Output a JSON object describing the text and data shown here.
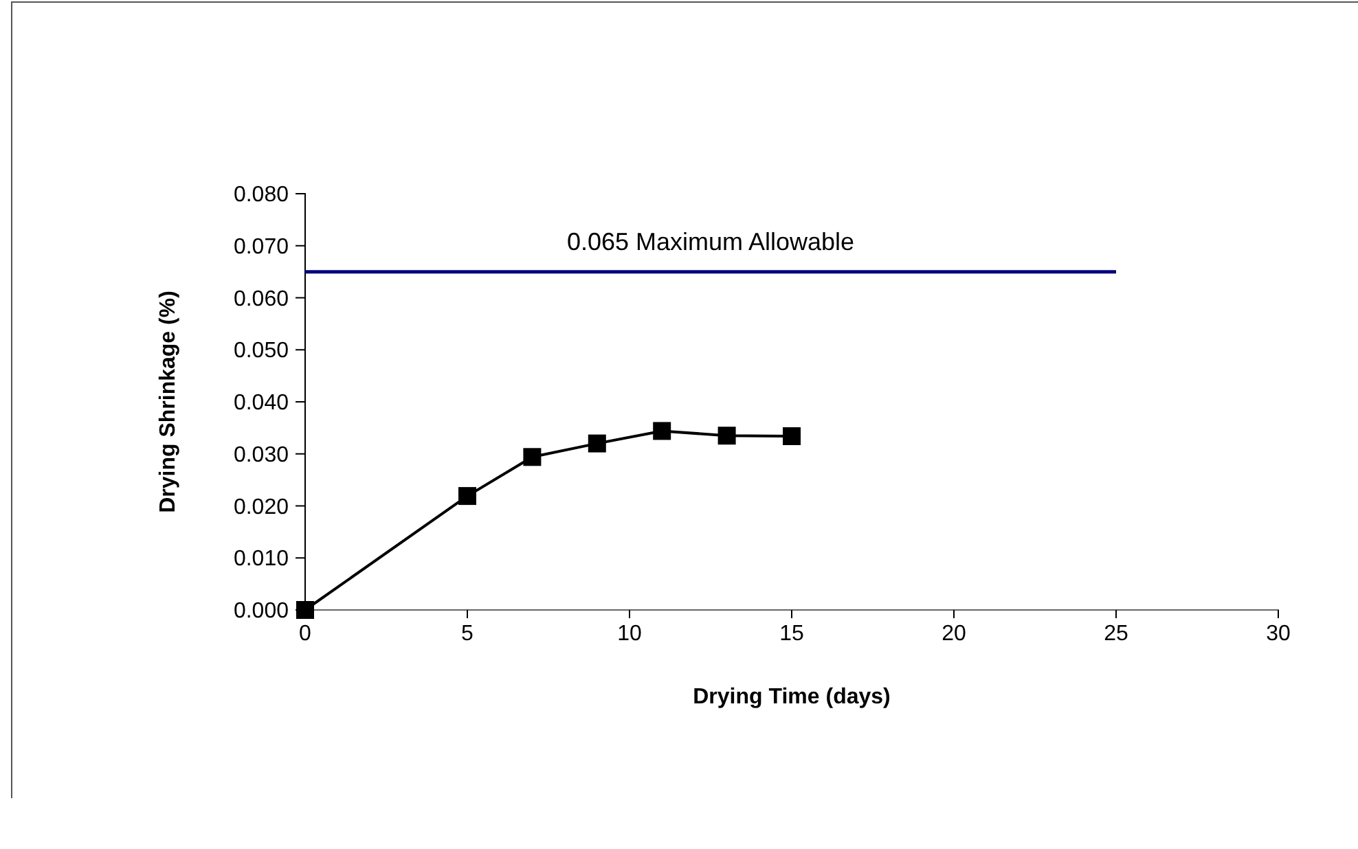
{
  "chart_data": {
    "type": "line",
    "xlabel": "Drying Time (days)",
    "ylabel": "Drying Shrinkage (%)",
    "xlim": [
      0,
      30
    ],
    "xticks": [
      0,
      5,
      10,
      15,
      20,
      25,
      30
    ],
    "ylim": [
      0,
      0.08
    ],
    "yticks": [
      {
        "value": 0,
        "label": "0.000"
      },
      {
        "value": 0.01,
        "label": "0.010"
      },
      {
        "value": 0.02,
        "label": "0.020"
      },
      {
        "value": 0.03,
        "label": "0.030"
      },
      {
        "value": 0.04,
        "label": "0.040"
      },
      {
        "value": 0.05,
        "label": "0.050"
      },
      {
        "value": 0.06,
        "label": "0.060"
      },
      {
        "value": 0.07,
        "label": "0.070"
      },
      {
        "value": 0.08,
        "label": "0.080"
      }
    ],
    "grid": false,
    "series": [
      {
        "color": "#000000",
        "marker": "square",
        "x": [
          0,
          5,
          7,
          9,
          11,
          13,
          15
        ],
        "values": [
          0,
          0.0219,
          0.0294,
          0.032,
          0.0344,
          0.0335,
          0.0334
        ]
      },
      {
        "color": "#000080",
        "marker": "none",
        "x": [
          0,
          25
        ],
        "values": [
          0.065,
          0.065
        ]
      }
    ],
    "annotations": [
      {
        "text": "0.065 Maximum Allowable",
        "x": 12.5,
        "y": 0.065
      }
    ]
  }
}
